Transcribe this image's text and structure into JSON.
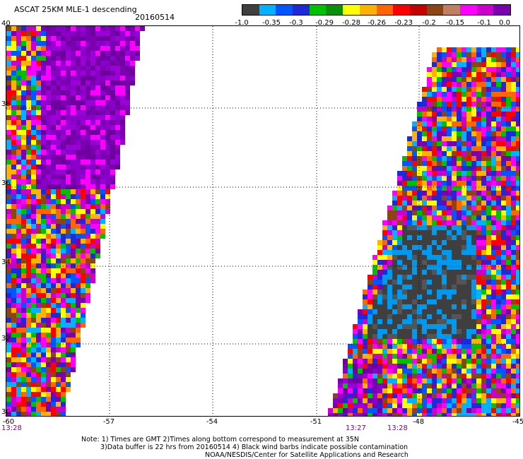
{
  "header": {
    "title": "ASCAT 25KM MLE-1 descending",
    "date": "20160514"
  },
  "colorbar": {
    "colors": [
      "#3f3f3f",
      "#00b2ff",
      "#0057ff",
      "#1c2bd6",
      "#00c100",
      "#0a8f0a",
      "#ffff00",
      "#ffb300",
      "#ff6600",
      "#ff0000",
      "#c40000",
      "#8b4513",
      "#c08060",
      "#ff00ff",
      "#cc00cc",
      "#7a00b0"
    ],
    "ticks": [
      "-1.0",
      "-0.35",
      "-0.3",
      "-0.29",
      "-0.28",
      "-0.26",
      "-0.23",
      "-0.2",
      "-0.15",
      "-0.1",
      "0.0"
    ]
  },
  "map": {
    "lon_labels": [
      "-60",
      "-57",
      "-54",
      "-51",
      "-48",
      "-45"
    ],
    "lat_labels": [
      "40",
      "38",
      "36",
      "34",
      "32",
      "30"
    ],
    "times": {
      "left": "13:28",
      "mid1": "13:27",
      "mid2": "13:28"
    }
  },
  "notes": {
    "line1": "Note: 1) Times are GMT 2)Times along bottom correspond to measurement at 35N",
    "line2": "3)Data buffer is 22 hrs from 20160514 4) Black wind barbs indicate possible contamination",
    "line3": "NOAA/NESDIS/Center for Satellite Applications and Research"
  }
}
